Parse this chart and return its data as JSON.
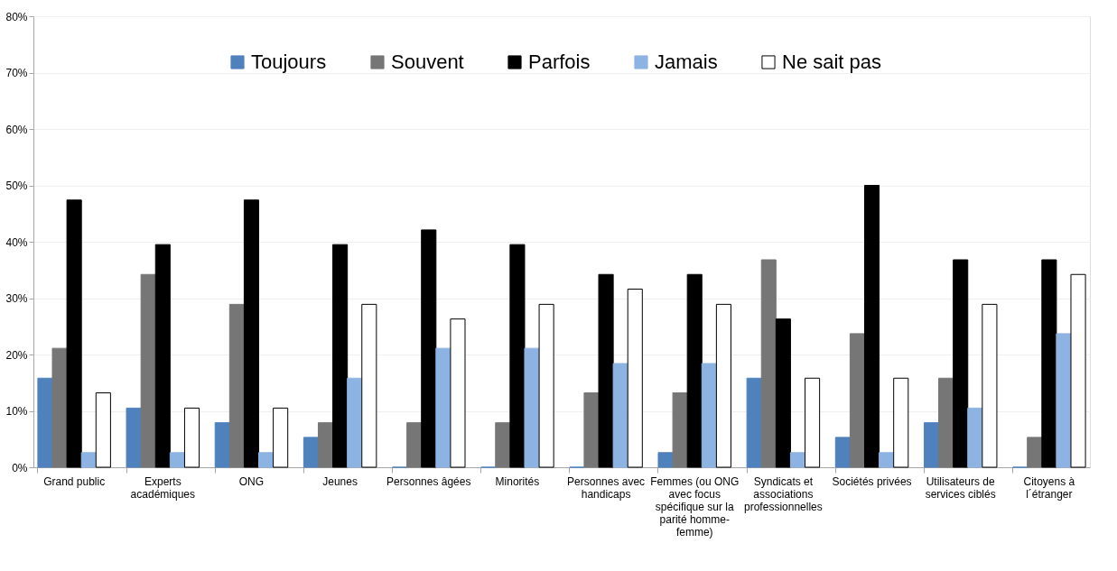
{
  "chart_data": {
    "type": "bar",
    "categories": [
      "Grand public",
      "Experts académiques",
      "ONG",
      "Jeunes",
      "Personnes âgées",
      "Minorités",
      "Personnes avec handicaps",
      "Femmes (ou ONG avec focus spécifique sur la parité homme-femme)",
      "Syndicats et associations professionnelles",
      "Sociétés privées",
      "Utilisateurs de services ciblés",
      "Citoyens à l´étranger"
    ],
    "series": [
      {
        "name": "Toujours",
        "color": "#4f81bd",
        "values": [
          15.8,
          10.5,
          7.9,
          5.3,
          0,
          0,
          0,
          2.6,
          15.8,
          5.3,
          7.9,
          0
        ]
      },
      {
        "name": "Souvent",
        "color": "#767676",
        "values": [
          21.1,
          34.2,
          28.9,
          7.9,
          7.9,
          7.9,
          13.2,
          13.2,
          36.8,
          23.7,
          15.8,
          5.3
        ]
      },
      {
        "name": "Parfois",
        "color": "#000000",
        "values": [
          47.4,
          39.5,
          47.4,
          39.5,
          42.1,
          39.5,
          34.2,
          34.2,
          26.3,
          50.0,
          36.8,
          36.8
        ]
      },
      {
        "name": "Jamais",
        "color": "#8db3e2",
        "values": [
          2.6,
          2.6,
          2.6,
          15.8,
          21.1,
          21.1,
          18.4,
          18.4,
          2.6,
          2.6,
          10.5,
          23.7
        ]
      },
      {
        "name": "Ne sait pas",
        "color": "#ffffff",
        "values": [
          13.2,
          10.5,
          10.5,
          28.9,
          26.3,
          28.9,
          31.6,
          28.9,
          15.8,
          15.8,
          28.9,
          34.2
        ]
      }
    ],
    "ylim": [
      0,
      80
    ],
    "yticks": [
      {
        "value": 0,
        "label": "0%"
      },
      {
        "value": 10,
        "label": "10%"
      },
      {
        "value": 20,
        "label": "20%"
      },
      {
        "value": 30,
        "label": "30%"
      },
      {
        "value": 40,
        "label": "40%"
      },
      {
        "value": 50,
        "label": "50%"
      },
      {
        "value": 60,
        "label": "60%"
      },
      {
        "value": 70,
        "label": "70%"
      },
      {
        "value": 80,
        "label": "80%"
      }
    ],
    "grid": "y",
    "legend": "top"
  }
}
